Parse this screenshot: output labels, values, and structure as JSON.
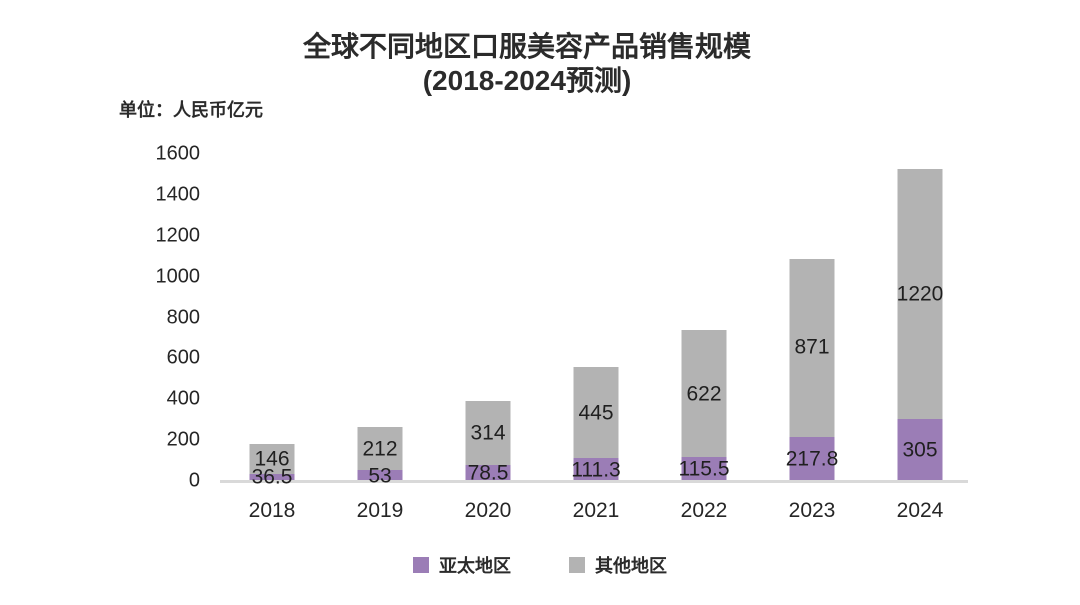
{
  "chart": {
    "title_line1": "全球不同地区口服美容产品销售规模",
    "title_line2": "(2018-2024预测)",
    "unit_label": "单位：人民币亿元"
  },
  "chart_data": {
    "type": "bar",
    "stacked": true,
    "title": "全球不同地区口服美容产品销售规模 (2018-2024预测)",
    "unit": "单位：人民币亿元",
    "categories": [
      "2018",
      "2019",
      "2020",
      "2021",
      "2022",
      "2023",
      "2024"
    ],
    "series": [
      {
        "name": "亚太地区",
        "color": "#9b7db6",
        "values": [
          36.5,
          53,
          78.5,
          111.3,
          115.5,
          217.8,
          305
        ]
      },
      {
        "name": "其他地区",
        "color": "#b3b3b3",
        "values": [
          146,
          212,
          314,
          445,
          622,
          871,
          1220
        ]
      }
    ],
    "xlabel": "",
    "ylabel": "人民币亿元",
    "ylim": [
      0,
      1600
    ],
    "ytick_step": 200,
    "grid": false,
    "data_labels": true,
    "legend_position": "bottom",
    "colors": {
      "apac": "#9b7db6",
      "other": "#b3b3b3",
      "axis_line": "#d9d9d9",
      "text": "#262626",
      "background": "#ffffff"
    }
  }
}
